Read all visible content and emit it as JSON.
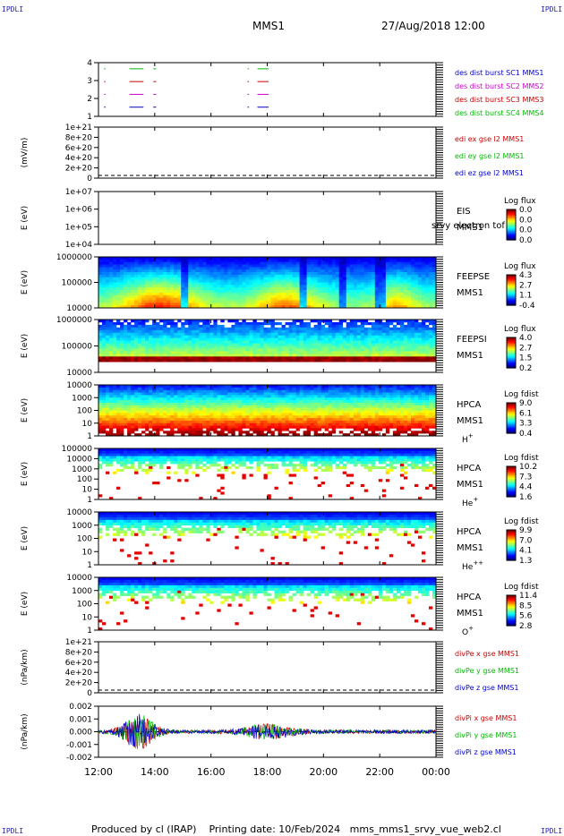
{
  "header": {
    "corner_left_top": "IPDLI",
    "corner_right_top": "IPDLI",
    "corner_left_bottom": "IPDLI",
    "corner_right_bottom": "IPDLI",
    "mission": "MMS1",
    "datetime": "27/Aug/2018 12:00"
  },
  "footer": {
    "text": "Produced by cl (IRAP)    Printing date: 10/Feb/2024   mms_mms1_srvy_vue_web2.cl"
  },
  "chart_data": {
    "type": "stacked time series",
    "x_ticks": [
      "12:00",
      "14:00",
      "16:00",
      "18:00",
      "20:00",
      "22:00",
      "00:00"
    ],
    "panels": [
      {
        "id": "burst",
        "type": "timeline",
        "y_ticks": [
          "4",
          "3",
          "2",
          "1"
        ],
        "series": [
          {
            "name": "des dist burst SC1 MMS1",
            "color": "#0000cc",
            "row": 1
          },
          {
            "name": "des dist burst SC2 MMS2",
            "color": "#cc00cc",
            "row": 2
          },
          {
            "name": "des dist burst SC3 MMS3",
            "color": "#cc0000",
            "row": 3
          },
          {
            "name": "des dist burst SC4 MMS4",
            "color": "#00bb00",
            "row": 4
          }
        ],
        "intervals_hours": [
          [
            12.2,
            12.25
          ],
          [
            13.1,
            13.6
          ],
          [
            13.95,
            14.05
          ],
          [
            17.3,
            17.35
          ],
          [
            17.65,
            18.05
          ]
        ]
      },
      {
        "id": "edi",
        "type": "line",
        "ylabel": "(mV/m)",
        "y_ticks": [
          "1e+21",
          "8e+20",
          "6e+20",
          "4e+20",
          "2e+20",
          "0"
        ],
        "series": [
          {
            "name": "edi ex gse l2 MMS1",
            "color": "#cc0000"
          },
          {
            "name": "edi ey gse l2 MMS1",
            "color": "#00bb00"
          },
          {
            "name": "edi ez gse l2 MMS1",
            "color": "#0000cc"
          }
        ]
      },
      {
        "id": "eis",
        "type": "spectrogram",
        "ylabel": "E (eV)",
        "y_ticks": [
          "1e+07",
          "1e+06",
          "1e+05",
          "1e+04"
        ],
        "labels": [
          "EIS",
          "MMS1"
        ],
        "overlay_text": "srvy electron tof",
        "colorbar": {
          "title": "Log flux",
          "ticks": [
            "0.0",
            "0.0",
            "0.0",
            "0.0"
          ]
        }
      },
      {
        "id": "feepse",
        "type": "spectrogram",
        "ylabel": "E (eV)",
        "y_ticks": [
          "1000000",
          "100000",
          "10000"
        ],
        "labels": [
          "FEEPSE",
          "MMS1"
        ],
        "colorbar": {
          "title": "Log flux",
          "ticks": [
            "4.3",
            "2.7",
            "1.1",
            "-0.4"
          ]
        }
      },
      {
        "id": "feepsi",
        "type": "spectrogram",
        "ylabel": "E (eV)",
        "y_ticks": [
          "1000000",
          "100000",
          "10000"
        ],
        "labels": [
          "FEEPSI",
          "MMS1"
        ],
        "colorbar": {
          "title": "Log flux",
          "ticks": [
            "4.0",
            "2.7",
            "1.5",
            "0.2"
          ]
        }
      },
      {
        "id": "hpca_h",
        "type": "spectrogram",
        "ylabel": "E (eV)",
        "y_ticks": [
          "10000",
          "1000",
          "100",
          "10",
          "1"
        ],
        "labels": [
          "HPCA",
          "MMS1",
          "H+"
        ],
        "colorbar": {
          "title": "Log fdist",
          "ticks": [
            "9.0",
            "6.1",
            "3.3",
            "0.4"
          ]
        }
      },
      {
        "id": "hpca_he",
        "type": "spectrogram",
        "ylabel": "E (eV)",
        "y_ticks": [
          "100000",
          "10000",
          "1000",
          "100",
          "10",
          "1"
        ],
        "labels": [
          "HPCA",
          "MMS1",
          "He+"
        ],
        "colorbar": {
          "title": "Log fdist",
          "ticks": [
            "10.2",
            "7.3",
            "4.4",
            "1.6"
          ]
        }
      },
      {
        "id": "hpca_hepp",
        "type": "spectrogram",
        "ylabel": "E (eV)",
        "y_ticks": [
          "10000",
          "1000",
          "100",
          "10",
          "1"
        ],
        "labels": [
          "HPCA",
          "MMS1",
          "He++"
        ],
        "colorbar": {
          "title": "Log fdist",
          "ticks": [
            "9.9",
            "7.0",
            "4.1",
            "1.3"
          ]
        }
      },
      {
        "id": "hpca_o",
        "type": "spectrogram",
        "ylabel": "E (eV)",
        "y_ticks": [
          "10000",
          "1000",
          "100",
          "10",
          "1"
        ],
        "labels": [
          "HPCA",
          "MMS1",
          "O+"
        ],
        "colorbar": {
          "title": "Log fdist",
          "ticks": [
            "11.4",
            "8.5",
            "5.6",
            "2.8"
          ]
        }
      },
      {
        "id": "divpe",
        "type": "line",
        "ylabel": "(nPa/km)",
        "y_ticks": [
          "1e+21",
          "8e+20",
          "6e+20",
          "4e+20",
          "2e+20",
          "0"
        ],
        "series": [
          {
            "name": "divPe x gse MMS1",
            "color": "#cc0000"
          },
          {
            "name": "divPe y gse MMS1",
            "color": "#00bb00"
          },
          {
            "name": "divPe z gse MMS1",
            "color": "#0000cc"
          }
        ]
      },
      {
        "id": "divpi",
        "type": "line",
        "ylabel": "(nPa/km)",
        "y_ticks": [
          "0.002",
          "0.001",
          "0.000",
          "-0.001",
          "-0.002"
        ],
        "ylim": [
          -0.0025,
          0.0025
        ],
        "series": [
          {
            "name": "divPi x gse MMS1",
            "color": "#cc0000"
          },
          {
            "name": "divPi y gse MMS1",
            "color": "#00bb00"
          },
          {
            "name": "divPi z gse MMS1",
            "color": "#0000cc"
          }
        ]
      }
    ]
  }
}
